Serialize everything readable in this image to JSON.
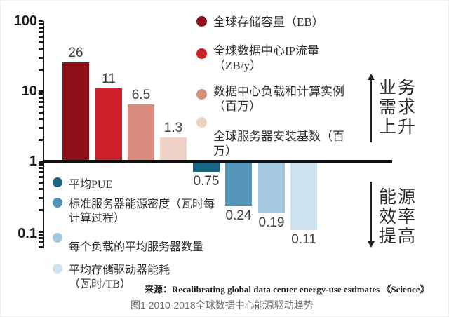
{
  "figure": {
    "source_line": "来源：Recalibrating global data center energy-use estimates 《Science》",
    "caption": "图1 2010-2018全球数据中心能源驱动趋势"
  },
  "y_axis": {
    "tick_labels": [
      "100",
      "10",
      "1",
      "0.1"
    ]
  },
  "annotations": {
    "demand": {
      "lines": [
        "业务",
        "需求",
        "上升"
      ],
      "direction": "up"
    },
    "efficiency": {
      "lines": [
        "能源",
        "效率",
        "提高"
      ],
      "direction": "down"
    }
  },
  "legend_demand": [
    {
      "lines": [
        "全球存储容量（EB）"
      ],
      "color": "#8E1117"
    },
    {
      "lines": [
        "全球数据中心IP流量",
        "（ZB/y）"
      ],
      "color": "#CC2128"
    },
    {
      "lines": [
        "数据中心负载和计算实例",
        "（百万）"
      ],
      "color": "#D98B7E"
    },
    {
      "lines": [
        "全球服务器安装基数（百",
        "万）"
      ],
      "color": "#EED2C6"
    }
  ],
  "legend_efficiency": [
    {
      "lines": [
        "平均PUE"
      ],
      "color": "#186683"
    },
    {
      "lines": [
        "标准服务器能源密度（瓦时每",
        "计算过程）"
      ],
      "color": "#5295B6"
    },
    {
      "lines": [
        "每个负载的平均服务器数量"
      ],
      "color": "#A3C9E0"
    },
    {
      "lines": [
        "平均存储驱动器能耗",
        "（瓦时/TB）"
      ],
      "color": "#CCE2F0"
    }
  ],
  "chart_data": {
    "type": "bar",
    "y_scale": "log",
    "ylim": [
      0.06,
      100
    ],
    "y_tick_values": [
      100,
      10,
      1,
      0.1
    ],
    "baseline_value": 1,
    "grid": false,
    "legend_position": "right-and-left",
    "title": "图1 2010-2018全球数据中心能源驱动趋势",
    "bars": [
      {
        "name": "全球存储容量（EB）",
        "value": 26,
        "label": "26",
        "color": "#8E1117",
        "group": "业务需求上升"
      },
      {
        "name": "全球数据中心IP流量（ZB/y）",
        "value": 11,
        "label": "11",
        "color": "#CC2128",
        "group": "业务需求上升"
      },
      {
        "name": "数据中心负载和计算实例（百万）",
        "value": 6.5,
        "label": "6.5",
        "color": "#D98B7E",
        "group": "业务需求上升"
      },
      {
        "name": "全球服务器安装基数（百万）",
        "value": 1.3,
        "label": "1.3",
        "color": "#EED2C6",
        "group": "业务需求上升"
      },
      {
        "name": "平均PUE",
        "value": 0.75,
        "label": "0.75",
        "color": "#186683",
        "group": "能源效率提高"
      },
      {
        "name": "标准服务器能源密度（瓦时每计算过程）",
        "value": 0.24,
        "label": "0.24",
        "color": "#5295B6",
        "group": "能源效率提高"
      },
      {
        "name": "每个负载的平均服务器数量",
        "value": 0.19,
        "label": "0.19",
        "color": "#A3C9E0",
        "group": "能源效率提高"
      },
      {
        "name": "平均存储驱动器能耗（瓦时/TB）",
        "value": 0.11,
        "label": "0.11",
        "color": "#CCE2F0",
        "group": "能源效率提高"
      }
    ]
  }
}
